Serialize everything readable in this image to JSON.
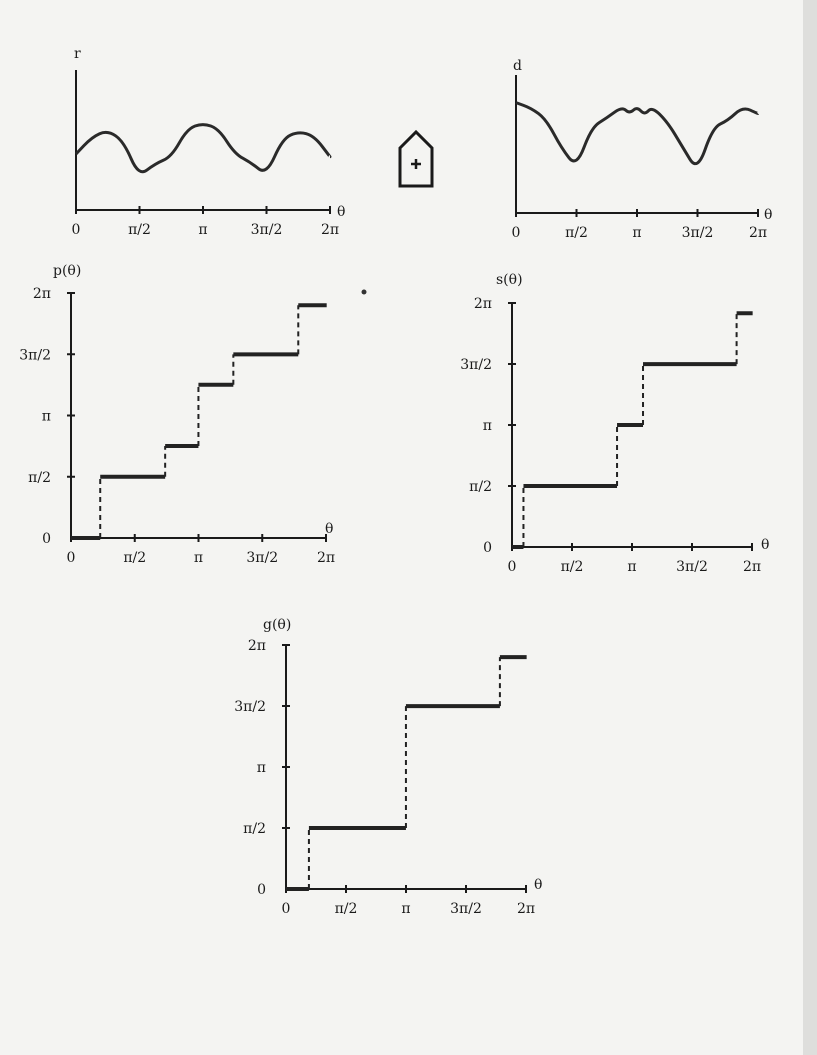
{
  "chart_data": [
    {
      "id": "r",
      "type": "line",
      "ylabel": "r",
      "xlabel": "θ",
      "xlim": [
        0,
        6.2832
      ],
      "ylim": [
        0,
        1
      ],
      "x_ticks": [
        0,
        1.5708,
        3.1416,
        4.7124,
        6.2832
      ],
      "x_tick_labels": [
        "0",
        "π/2",
        "π",
        "3π/2",
        "2π"
      ],
      "series": [
        {
          "x": [
            0,
            0.39,
            0.78,
            1.18,
            1.55,
            1.96,
            2.36,
            2.75,
            3.14,
            3.53,
            3.93,
            4.32,
            4.71,
            5.11,
            5.5,
            5.89,
            6.2832
          ],
          "y": [
            0.4,
            0.52,
            0.57,
            0.49,
            0.24,
            0.33,
            0.38,
            0.58,
            0.62,
            0.58,
            0.4,
            0.34,
            0.25,
            0.51,
            0.56,
            0.53,
            0.38
          ]
        }
      ]
    },
    {
      "id": "d",
      "type": "line",
      "ylabel": "d",
      "xlabel": "θ",
      "xlim": [
        0,
        6.2832
      ],
      "ylim": [
        0,
        1
      ],
      "x_ticks": [
        0,
        1.5708,
        3.1416,
        4.7124,
        6.2832
      ],
      "x_tick_labels": [
        "0",
        "π/2",
        "π",
        "3π/2",
        "2π"
      ],
      "series": [
        {
          "x": [
            0,
            0.39,
            0.78,
            1.18,
            1.57,
            1.96,
            2.36,
            2.75,
            2.95,
            3.14,
            3.34,
            3.53,
            3.93,
            4.32,
            4.71,
            5.11,
            5.5,
            5.89,
            6.2832
          ],
          "y": [
            0.8,
            0.76,
            0.68,
            0.47,
            0.33,
            0.62,
            0.69,
            0.77,
            0.72,
            0.77,
            0.71,
            0.77,
            0.66,
            0.48,
            0.3,
            0.62,
            0.67,
            0.77,
            0.72
          ]
        }
      ]
    },
    {
      "id": "p",
      "type": "step",
      "ylabel": "p(θ)",
      "xlabel": "θ",
      "xlim": [
        0,
        6.2832
      ],
      "ylim": [
        0,
        6.2832
      ],
      "x_ticks": [
        0,
        1.5708,
        3.1416,
        4.7124,
        6.2832
      ],
      "x_tick_labels": [
        "0",
        "π/2",
        "π",
        "3π/2",
        "2π"
      ],
      "y_ticks": [
        0,
        1.5708,
        3.1416,
        4.7124,
        6.2832
      ],
      "y_tick_labels": [
        "0",
        "π/2",
        "π",
        "3π/2",
        "2π"
      ],
      "segments": [
        {
          "x": [
            0,
            0.72
          ],
          "y": 0
        },
        {
          "x": [
            0.72,
            2.32
          ],
          "y": 1.5708
        },
        {
          "x": [
            2.32,
            3.14
          ],
          "y": 2.36
        },
        {
          "x": [
            3.14,
            4.0
          ],
          "y": 3.93
        },
        {
          "x": [
            4.0,
            5.6
          ],
          "y": 4.71
        },
        {
          "x": [
            5.6,
            6.3
          ],
          "y": 5.97
        }
      ]
    },
    {
      "id": "s",
      "type": "step",
      "ylabel": "s(θ)",
      "xlabel": "θ",
      "xlim": [
        0,
        6.2832
      ],
      "ylim": [
        0,
        6.2832
      ],
      "x_ticks": [
        0,
        1.5708,
        3.1416,
        4.7124,
        6.2832
      ],
      "x_tick_labels": [
        "0",
        "π/2",
        "π",
        "3π/2",
        "2π"
      ],
      "y_ticks": [
        0,
        1.5708,
        3.1416,
        4.7124,
        6.2832
      ],
      "y_tick_labels": [
        "0",
        "π/2",
        "π",
        "3π/2",
        "2π"
      ],
      "segments": [
        {
          "x": [
            0,
            0.3
          ],
          "y": 0
        },
        {
          "x": [
            0.3,
            2.75
          ],
          "y": 1.5708
        },
        {
          "x": [
            2.75,
            3.43
          ],
          "y": 3.14
        },
        {
          "x": [
            3.43,
            5.88
          ],
          "y": 4.71
        },
        {
          "x": [
            5.88,
            6.3
          ],
          "y": 6.02
        }
      ]
    },
    {
      "id": "g",
      "type": "step",
      "ylabel": "g(θ)",
      "xlabel": "θ",
      "xlim": [
        0,
        6.2832
      ],
      "ylim": [
        0,
        6.2832
      ],
      "x_ticks": [
        0,
        1.5708,
        3.1416,
        4.7124,
        6.2832
      ],
      "x_tick_labels": [
        "0",
        "π/2",
        "π",
        "3π/2",
        "2π"
      ],
      "y_ticks": [
        0,
        1.5708,
        3.1416,
        4.7124,
        6.2832
      ],
      "y_tick_labels": [
        "0",
        "π/2",
        "π",
        "3π/2",
        "2π"
      ],
      "segments": [
        {
          "x": [
            0,
            0.6
          ],
          "y": 0
        },
        {
          "x": [
            0.6,
            3.14
          ],
          "y": 1.5708
        },
        {
          "x": [
            3.14,
            5.6
          ],
          "y": 4.71
        },
        {
          "x": [
            5.6,
            6.3
          ],
          "y": 5.97
        }
      ]
    }
  ]
}
